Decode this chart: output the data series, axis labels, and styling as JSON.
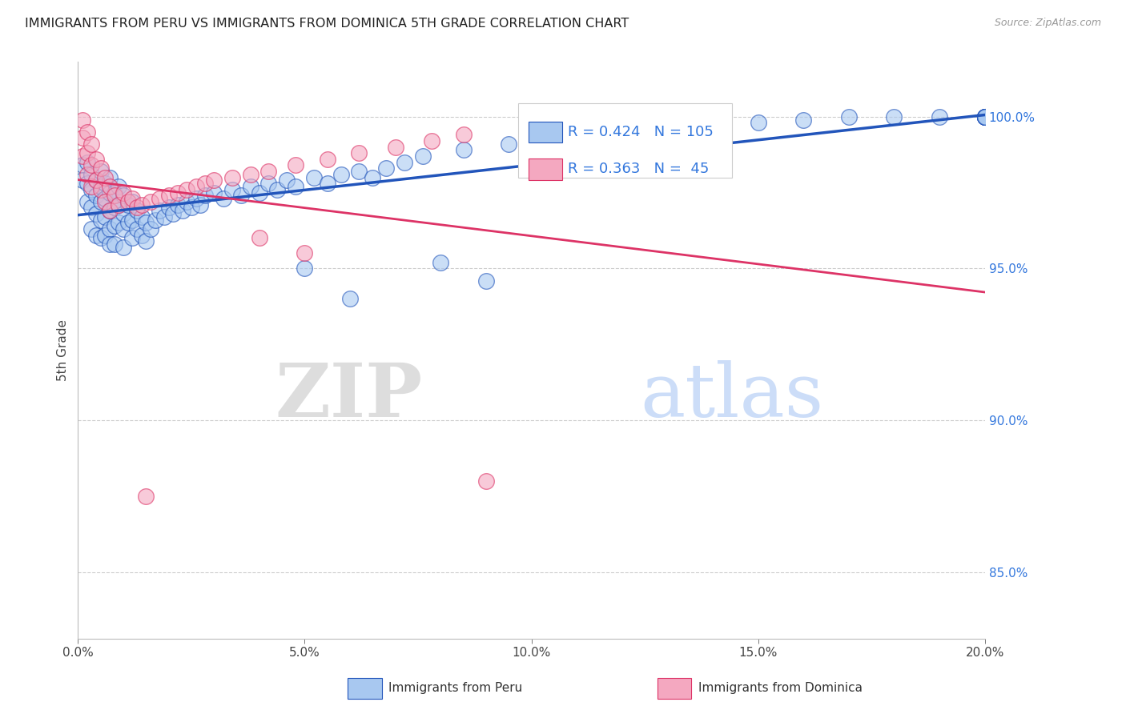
{
  "title": "IMMIGRANTS FROM PERU VS IMMIGRANTS FROM DOMINICA 5TH GRADE CORRELATION CHART",
  "source": "Source: ZipAtlas.com",
  "ylabel_left": "5th Grade",
  "ylabel_right_ticks": [
    "85.0%",
    "90.0%",
    "95.0%",
    "100.0%"
  ],
  "ylabel_right_values": [
    0.85,
    0.9,
    0.95,
    1.0
  ],
  "xmin": 0.0,
  "xmax": 0.2,
  "ymin": 0.828,
  "ymax": 1.018,
  "xtick_labels": [
    "0.0%",
    "5.0%",
    "10.0%",
    "15.0%",
    "20.0%"
  ],
  "xtick_values": [
    0.0,
    0.05,
    0.1,
    0.15,
    0.2
  ],
  "legend_peru_R": 0.424,
  "legend_peru_N": 105,
  "legend_dom_R": 0.363,
  "legend_dom_N": 45,
  "color_peru": "#A8C8F0",
  "color_dom": "#F4A8C0",
  "color_peru_line": "#2255BB",
  "color_dom_line": "#DD3366",
  "color_right_axis": "#3377DD",
  "watermark_zip": "ZIP",
  "watermark_atlas": "atlas",
  "background_color": "#FFFFFF",
  "peru_x": [
    0.001,
    0.001,
    0.002,
    0.002,
    0.002,
    0.003,
    0.003,
    0.003,
    0.003,
    0.004,
    0.004,
    0.004,
    0.004,
    0.005,
    0.005,
    0.005,
    0.005,
    0.005,
    0.006,
    0.006,
    0.006,
    0.006,
    0.007,
    0.007,
    0.007,
    0.007,
    0.007,
    0.008,
    0.008,
    0.008,
    0.008,
    0.009,
    0.009,
    0.009,
    0.01,
    0.01,
    0.01,
    0.01,
    0.011,
    0.011,
    0.012,
    0.012,
    0.012,
    0.013,
    0.013,
    0.014,
    0.014,
    0.015,
    0.015,
    0.016,
    0.017,
    0.018,
    0.019,
    0.02,
    0.021,
    0.022,
    0.023,
    0.024,
    0.025,
    0.026,
    0.027,
    0.028,
    0.03,
    0.032,
    0.034,
    0.036,
    0.038,
    0.04,
    0.042,
    0.044,
    0.046,
    0.048,
    0.05,
    0.052,
    0.055,
    0.058,
    0.06,
    0.062,
    0.065,
    0.068,
    0.072,
    0.076,
    0.08,
    0.085,
    0.09,
    0.095,
    0.1,
    0.11,
    0.12,
    0.13,
    0.14,
    0.15,
    0.16,
    0.17,
    0.18,
    0.19,
    0.2,
    0.2,
    0.2,
    0.2,
    0.2,
    0.2,
    0.2,
    0.2,
    0.2
  ],
  "peru_y": [
    0.984,
    0.979,
    0.985,
    0.978,
    0.972,
    0.981,
    0.976,
    0.97,
    0.963,
    0.979,
    0.974,
    0.968,
    0.961,
    0.982,
    0.977,
    0.972,
    0.966,
    0.96,
    0.978,
    0.973,
    0.967,
    0.961,
    0.98,
    0.975,
    0.969,
    0.963,
    0.958,
    0.975,
    0.97,
    0.964,
    0.958,
    0.977,
    0.971,
    0.965,
    0.974,
    0.968,
    0.963,
    0.957,
    0.971,
    0.965,
    0.972,
    0.966,
    0.96,
    0.969,
    0.963,
    0.967,
    0.961,
    0.965,
    0.959,
    0.963,
    0.966,
    0.969,
    0.967,
    0.97,
    0.968,
    0.971,
    0.969,
    0.972,
    0.97,
    0.973,
    0.971,
    0.974,
    0.975,
    0.973,
    0.976,
    0.974,
    0.977,
    0.975,
    0.978,
    0.976,
    0.979,
    0.977,
    0.95,
    0.98,
    0.978,
    0.981,
    0.94,
    0.982,
    0.98,
    0.983,
    0.985,
    0.987,
    0.952,
    0.989,
    0.946,
    0.991,
    0.988,
    0.993,
    0.994,
    0.996,
    0.997,
    0.998,
    0.999,
    1.0,
    1.0,
    1.0,
    1.0,
    1.0,
    1.0,
    1.0,
    1.0,
    1.0,
    1.0,
    1.0,
    1.0
  ],
  "dom_x": [
    0.001,
    0.001,
    0.001,
    0.002,
    0.002,
    0.002,
    0.003,
    0.003,
    0.003,
    0.004,
    0.004,
    0.005,
    0.005,
    0.006,
    0.006,
    0.007,
    0.007,
    0.008,
    0.009,
    0.01,
    0.011,
    0.012,
    0.013,
    0.014,
    0.016,
    0.018,
    0.02,
    0.022,
    0.024,
    0.026,
    0.028,
    0.03,
    0.034,
    0.038,
    0.042,
    0.048,
    0.055,
    0.062,
    0.07,
    0.078,
    0.085,
    0.09,
    0.04,
    0.05,
    0.015
  ],
  "dom_y": [
    0.999,
    0.993,
    0.987,
    0.995,
    0.988,
    0.981,
    0.991,
    0.984,
    0.977,
    0.986,
    0.979,
    0.983,
    0.976,
    0.98,
    0.972,
    0.977,
    0.969,
    0.974,
    0.971,
    0.975,
    0.972,
    0.973,
    0.97,
    0.971,
    0.972,
    0.973,
    0.974,
    0.975,
    0.976,
    0.977,
    0.978,
    0.979,
    0.98,
    0.981,
    0.982,
    0.984,
    0.986,
    0.988,
    0.99,
    0.992,
    0.994,
    0.88,
    0.96,
    0.955,
    0.875
  ]
}
